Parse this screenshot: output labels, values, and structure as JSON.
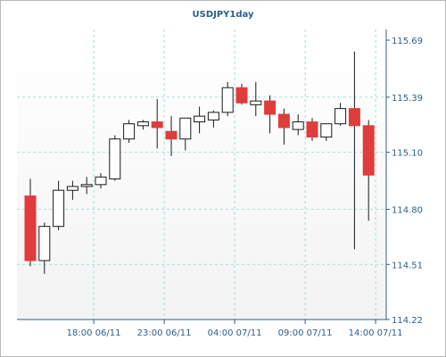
{
  "chart_data": {
    "type": "candlestick",
    "title": "USDJPY1day",
    "xlabel": "",
    "ylabel": "",
    "ylim": [
      114.22,
      115.69
    ],
    "y_ticks": [
      114.22,
      114.51,
      114.8,
      115.1,
      115.39,
      115.69
    ],
    "y_tick_labels": [
      "114.22",
      "114.51",
      "114.80",
      "115.10",
      "115.39",
      "115.69"
    ],
    "x_tick_labels": [
      "18:00 06/11",
      "23:00 06/11",
      "04:00 07/11",
      "09:00 07/11",
      "14:00 07/11"
    ],
    "x_tick_after_candle": [
      4,
      9,
      14,
      19,
      24
    ],
    "grid": true,
    "candles": [
      {
        "open": 114.87,
        "high": 114.96,
        "low": 114.5,
        "close": 114.53
      },
      {
        "open": 114.53,
        "high": 114.73,
        "low": 114.46,
        "close": 114.71
      },
      {
        "open": 114.71,
        "high": 114.95,
        "low": 114.69,
        "close": 114.9
      },
      {
        "open": 114.9,
        "high": 114.95,
        "low": 114.85,
        "close": 114.92
      },
      {
        "open": 114.92,
        "high": 114.97,
        "low": 114.88,
        "close": 114.93
      },
      {
        "open": 114.93,
        "high": 114.99,
        "low": 114.91,
        "close": 114.97
      },
      {
        "open": 114.96,
        "high": 115.19,
        "low": 114.95,
        "close": 115.17
      },
      {
        "open": 115.17,
        "high": 115.27,
        "low": 115.15,
        "close": 115.25
      },
      {
        "open": 115.24,
        "high": 115.27,
        "low": 115.22,
        "close": 115.26
      },
      {
        "open": 115.26,
        "high": 115.38,
        "low": 115.12,
        "close": 115.23
      },
      {
        "open": 115.21,
        "high": 115.29,
        "low": 115.08,
        "close": 115.17
      },
      {
        "open": 115.17,
        "high": 115.27,
        "low": 115.11,
        "close": 115.28
      },
      {
        "open": 115.26,
        "high": 115.34,
        "low": 115.2,
        "close": 115.29
      },
      {
        "open": 115.27,
        "high": 115.32,
        "low": 115.23,
        "close": 115.31
      },
      {
        "open": 115.31,
        "high": 115.47,
        "low": 115.29,
        "close": 115.44
      },
      {
        "open": 115.44,
        "high": 115.46,
        "low": 115.35,
        "close": 115.36
      },
      {
        "open": 115.35,
        "high": 115.47,
        "low": 115.29,
        "close": 115.37
      },
      {
        "open": 115.37,
        "high": 115.4,
        "low": 115.2,
        "close": 115.3
      },
      {
        "open": 115.3,
        "high": 115.33,
        "low": 115.14,
        "close": 115.23
      },
      {
        "open": 115.22,
        "high": 115.3,
        "low": 115.19,
        "close": 115.26
      },
      {
        "open": 115.26,
        "high": 115.28,
        "low": 115.16,
        "close": 115.18
      },
      {
        "open": 115.18,
        "high": 115.25,
        "low": 115.16,
        "close": 115.25
      },
      {
        "open": 115.25,
        "high": 115.36,
        "low": 115.24,
        "close": 115.33
      },
      {
        "open": 115.33,
        "high": 115.63,
        "low": 114.59,
        "close": 115.24
      },
      {
        "open": 115.24,
        "high": 115.27,
        "low": 114.74,
        "close": 114.98
      }
    ],
    "colors": {
      "bullish_fill": "#ffffff",
      "bearish_fill": "#e03c3c",
      "candle_stroke": "#1a1a1a",
      "grid": "#8fd3d3",
      "axis": "#2b5f8a",
      "frame": "#b9b9b9",
      "background_top": "#ffffff",
      "background_bottom": "#f3f3f3"
    }
  }
}
